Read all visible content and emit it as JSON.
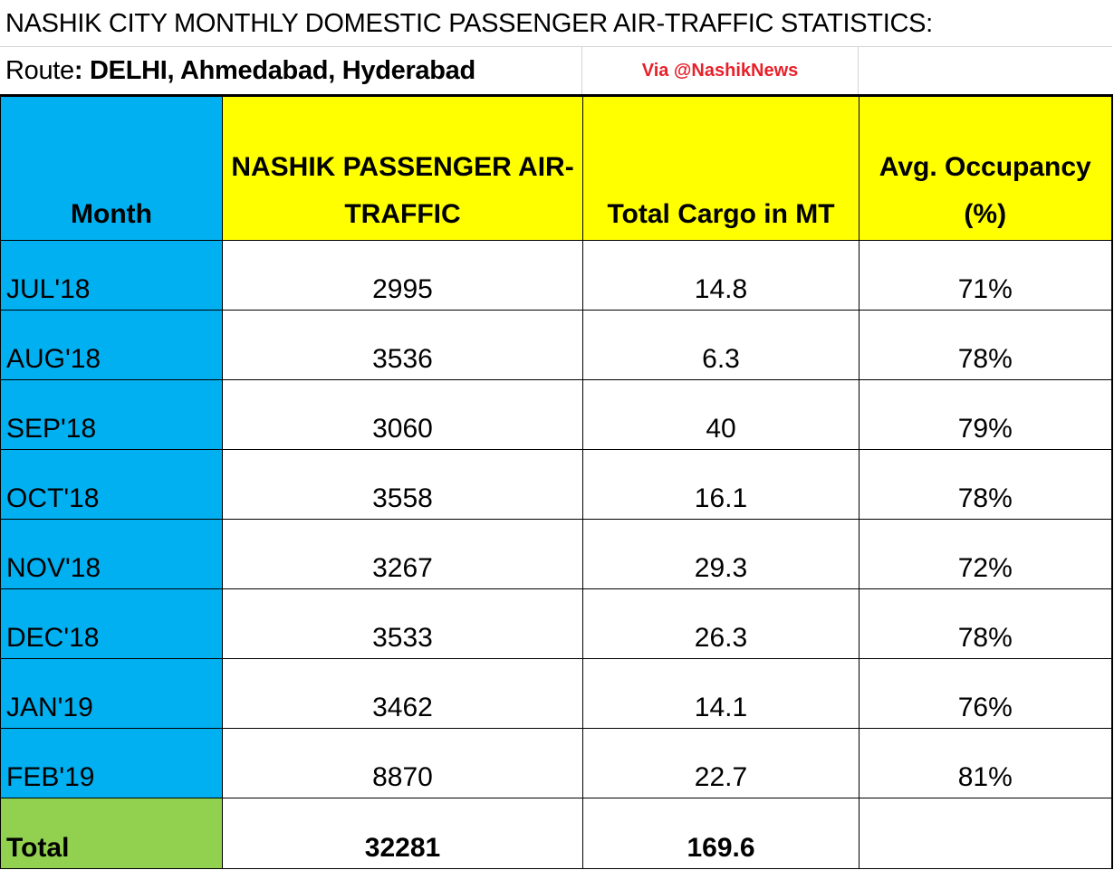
{
  "title": "NASHIK CITY MONTHLY DOMESTIC PASSENGER AIR-TRAFFIC STATISTICS:",
  "route_label": "Route",
  "route_value": ": DELHI, Ahmedabad, Hyderabad",
  "via": "Via @NashikNews",
  "headers": [
    "Month",
    "NASHIK PASSENGER AIR-TRAFFIC",
    "Total Cargo in MT",
    "Avg. Occupancy (%)"
  ],
  "rows": [
    {
      "month": "JUL'18",
      "passengers": "2995",
      "cargo": "14.8",
      "occupancy": "71%"
    },
    {
      "month": "AUG'18",
      "passengers": "3536",
      "cargo": "6.3",
      "occupancy": "78%"
    },
    {
      "month": "SEP'18",
      "passengers": "3060",
      "cargo": "40",
      "occupancy": "79%"
    },
    {
      "month": "OCT'18",
      "passengers": "3558",
      "cargo": "16.1",
      "occupancy": "78%"
    },
    {
      "month": "NOV'18",
      "passengers": "3267",
      "cargo": "29.3",
      "occupancy": "72%"
    },
    {
      "month": "DEC'18",
      "passengers": "3533",
      "cargo": "26.3",
      "occupancy": "78%"
    },
    {
      "month": "JAN'19",
      "passengers": "3462",
      "cargo": "14.1",
      "occupancy": "76%"
    },
    {
      "month": "FEB'19",
      "passengers": "8870",
      "cargo": "22.7",
      "occupancy": "81%"
    }
  ],
  "total": {
    "label": "Total",
    "passengers": "32281",
    "cargo": "169.6"
  },
  "colors": {
    "month_col": "#00b0f0",
    "header": "#ffff00",
    "total": "#92d050",
    "via": "#e8202a"
  }
}
